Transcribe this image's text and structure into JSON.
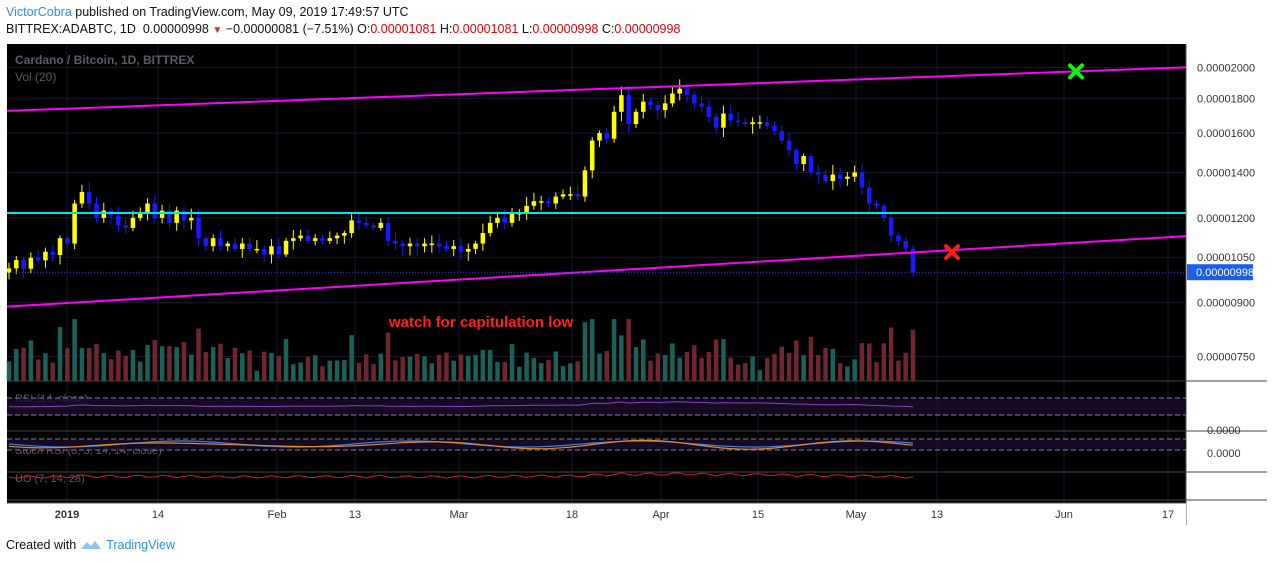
{
  "header": {
    "author": "VictorCobra",
    "published": "published on TradingView.com, May 09, 2019 17:49:57 UTC",
    "symbol": "BITTREX:ADABTC, 1D",
    "last": "0.00000998",
    "change": "−0.00000081 (−7.51%)",
    "o_label": "O:",
    "o": "0.00001081",
    "h_label": "H:",
    "h": "0.00001081",
    "l_label": "L:",
    "l": "0.00000998",
    "c_label": "C:",
    "c": "0.00000998"
  },
  "legend": {
    "title": "Cardano / Bitcoin, 1D, BITTREX",
    "vol": "Vol (20)",
    "rsi": "RSI (14, close)",
    "stoch": "Stoch RSI (3, 3, 14, 14, close)",
    "uo": "UO (7, 14, 28)"
  },
  "annotation": "watch for capitulation low",
  "price_axis": {
    "ticks": [
      "0.00002000",
      "0.00001800",
      "0.00001600",
      "0.00001400",
      "0.00001200",
      "0.00001050",
      "0.00000900",
      "0.00000750"
    ],
    "current": "0.00000998",
    "stoch_ticks": [
      "0.0000",
      "0.0000"
    ]
  },
  "time_axis": {
    "ticks": [
      "2019",
      "14",
      "Feb",
      "13",
      "Mar",
      "18",
      "Apr",
      "15",
      "May",
      "13",
      "Jun",
      "17"
    ]
  },
  "colors": {
    "up": "#ffff00",
    "down": "#1a1aff",
    "channel": "#ff00ff",
    "support": "#00e5e5",
    "target": "#00ff00",
    "marker": "#ff1a1a",
    "background": "#000000"
  },
  "footer": {
    "created_with": "Created with",
    "brand": "TradingView"
  },
  "chart_data": {
    "type": "candlestick",
    "interval": "1D",
    "period": "2019-01-01 to 2019-05-09",
    "y_scale": "log",
    "ylim": [
      6.9e-06,
      2.15e-05
    ],
    "close": [
      1011,
      1040,
      1010,
      1048,
      1039,
      1070,
      1058,
      1120,
      1100,
      1260,
      1310,
      1260,
      1200,
      1230,
      1210,
      1170,
      1160,
      1200,
      1220,
      1260,
      1200,
      1230,
      1180,
      1230,
      1190,
      1200,
      1120,
      1090,
      1120,
      1090,
      1100,
      1080,
      1100,
      1080,
      1080,
      1060,
      1090,
      1060,
      1110,
      1120,
      1130,
      1110,
      1120,
      1110,
      1120,
      1130,
      1140,
      1190,
      1180,
      1170,
      1160,
      1180,
      1110,
      1100,
      1090,
      1100,
      1090,
      1100,
      1100,
      1090,
      1080,
      1090,
      1070,
      1080,
      1100,
      1140,
      1180,
      1200,
      1180,
      1220,
      1220,
      1250,
      1270,
      1270,
      1260,
      1290,
      1300,
      1300,
      1290,
      1410,
      1560,
      1600,
      1570,
      1720,
      1820,
      1650,
      1720,
      1780,
      1760,
      1730,
      1770,
      1830,
      1860,
      1820,
      1770,
      1750,
      1690,
      1630,
      1710,
      1670,
      1660,
      1650,
      1660,
      1660,
      1640,
      1610,
      1560,
      1510,
      1440,
      1480,
      1400,
      1390,
      1360,
      1390,
      1370,
      1380,
      1400,
      1330,
      1260,
      1250,
      1200,
      1130,
      1110,
      1081,
      998
    ],
    "target_x_label": "Jun",
    "series_lines": [
      "channel upper",
      "channel lower",
      "support 0.00001220",
      "current 0.00000998"
    ],
    "ylabel": "",
    "xlabel": ""
  }
}
